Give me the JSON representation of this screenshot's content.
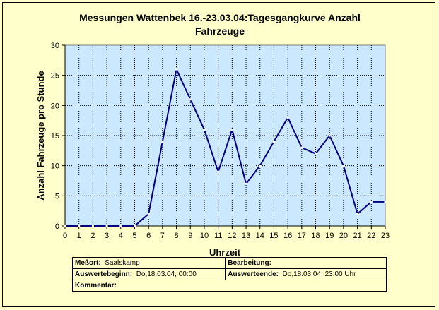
{
  "chart_data": {
    "type": "line",
    "title_line1": "Messungen Wattenbek 16.-23.03.04:Tagesgangkurve Anzahl",
    "title_line2": "Fahrzeuge",
    "xlabel": "Uhrzeit",
    "ylabel": "Anzahl Fahrzeuge pro Stunde",
    "x": [
      0,
      1,
      2,
      3,
      4,
      5,
      6,
      7,
      8,
      9,
      10,
      11,
      12,
      13,
      14,
      15,
      16,
      17,
      18,
      19,
      20,
      21,
      22,
      23
    ],
    "values": [
      0,
      0,
      0,
      0,
      0,
      0,
      2,
      14,
      26,
      21,
      16,
      9,
      16,
      7,
      10,
      14,
      18,
      13,
      12,
      15,
      10,
      2,
      4,
      4
    ],
    "xlim": [
      0,
      23
    ],
    "ylim": [
      0,
      30
    ],
    "yticks": [
      0,
      5,
      10,
      15,
      20,
      25,
      30
    ],
    "grid": true,
    "line_color": "#000080",
    "marker_color": "#ffffff",
    "plot_background": "#cce8ff"
  },
  "info": {
    "messort_label": "Meßort:",
    "messort_value": "Saalskamp",
    "bearbeitung_label": "Bearbeitung:",
    "bearbeitung_value": "",
    "beginn_label": "Auswertebeginn:",
    "beginn_value": "Do,18.03.04, 00:00",
    "ende_label": "Auswerteende:",
    "ende_value": "Do,18.03.04, 23:00 Uhr",
    "kommentar_label": "Kommentar:",
    "kommentar_value": ""
  }
}
